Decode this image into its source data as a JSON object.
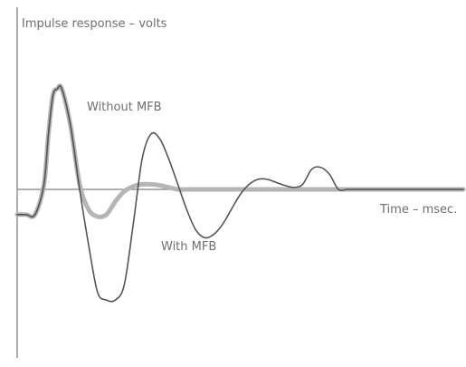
{
  "chart_data": {
    "type": "line",
    "title": "",
    "xlabel": "Time – msec.",
    "ylabel": "Impulse response – volts",
    "ylim": [
      -1.4,
      1.4
    ],
    "grid": false,
    "legend": "none",
    "annotations": [
      "Without MFB",
      "With MFB"
    ],
    "series": [
      {
        "name": "Without MFB",
        "color": "#555555",
        "x": [
          0,
          2,
          4,
          6,
          7,
          8,
          9,
          10,
          12,
          14,
          16,
          18,
          20,
          22,
          24,
          26,
          28,
          30,
          32,
          34,
          36,
          38,
          40,
          42,
          44,
          46,
          48,
          50,
          52,
          54,
          56,
          58,
          60,
          62,
          64,
          66,
          68,
          70,
          72,
          74,
          76,
          78,
          80,
          82,
          84,
          86,
          88,
          90,
          92,
          94,
          96,
          98,
          100
        ],
        "y": [
          -0.25,
          -0.25,
          -0.25,
          0.05,
          0.55,
          0.93,
          1.0,
          1.0,
          0.62,
          0.0,
          -0.55,
          -1.02,
          -1.1,
          -1.1,
          -0.95,
          -0.35,
          0.3,
          0.55,
          0.5,
          0.3,
          0.05,
          -0.2,
          -0.4,
          -0.48,
          -0.45,
          -0.35,
          -0.2,
          -0.05,
          0.05,
          0.1,
          0.1,
          0.07,
          0.04,
          0.02,
          0.05,
          0.2,
          0.22,
          0.15,
          0.0,
          0.0,
          0.0,
          0.0,
          0.0,
          0.0,
          0.0,
          0.0,
          0.0,
          0.0,
          0.0,
          0.0,
          0.0,
          0.0,
          0.0
        ]
      },
      {
        "name": "With MFB",
        "color": "#b5b5b5",
        "x": [
          0,
          2,
          4,
          6,
          7,
          8,
          9,
          10,
          12,
          14,
          16,
          18,
          20,
          22,
          24,
          26,
          28,
          30,
          32,
          34,
          36,
          38,
          40,
          42,
          44,
          46,
          48,
          50,
          52,
          54,
          56,
          58,
          60,
          62,
          64,
          66,
          68,
          70,
          72,
          74,
          76,
          78,
          80,
          82,
          84,
          86,
          88,
          90,
          92,
          94,
          96,
          98,
          100
        ],
        "y": [
          -0.25,
          -0.25,
          -0.25,
          0.05,
          0.55,
          0.93,
          1.0,
          1.0,
          0.62,
          0.05,
          -0.2,
          -0.27,
          -0.25,
          -0.12,
          -0.02,
          0.03,
          0.05,
          0.05,
          0.04,
          0.02,
          0.0,
          0.0,
          0.0,
          0.0,
          0.0,
          0.0,
          0.0,
          0.0,
          0.0,
          0.0,
          0.0,
          0.0,
          0.0,
          0.0,
          0.0,
          0.0,
          0.0,
          0.0,
          0.0,
          0.0,
          0.0,
          0.0,
          0.0,
          0.0,
          0.0,
          0.0,
          0.0,
          0.0,
          0.0,
          0.0,
          0.0,
          0.0,
          0.0
        ]
      }
    ]
  }
}
